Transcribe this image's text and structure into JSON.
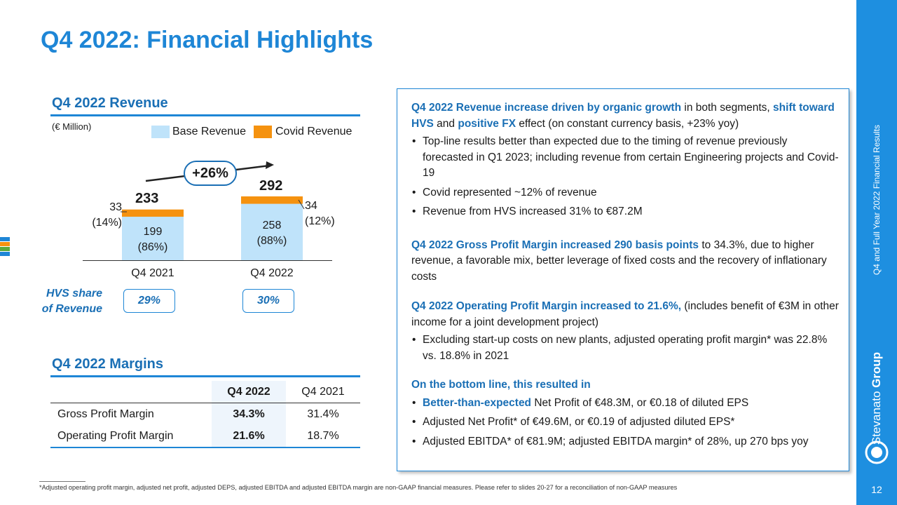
{
  "page": {
    "title": "Q4 2022: Financial Highlights",
    "side_label": "Q4 and Full Year 2022 Financial Results",
    "brand_name_part1": "Stevanato",
    "brand_name_part2": "Group",
    "page_number": "12",
    "colors": {
      "accent": "#1e86d6",
      "heading": "#1a6fb5",
      "base_revenue": "#bfe3fa",
      "covid_revenue": "#f5920f"
    }
  },
  "revenue": {
    "heading": "Q4 2022 Revenue",
    "unit": "(€ Million)",
    "legend_base": "Base Revenue",
    "legend_covid": "Covid Revenue",
    "growth": "+26%",
    "hvs_label_line1": "HVS share",
    "hvs_label_line2": "of Revenue",
    "periods": [
      {
        "label": "Q4 2021",
        "total": "233",
        "base": "199",
        "base_pct": "(86%)",
        "covid": "33",
        "covid_pct": "(14%)",
        "hvs_share": "29%"
      },
      {
        "label": "Q4 2022",
        "total": "292",
        "base": "258",
        "base_pct": "(88%)",
        "covid": "34",
        "covid_pct": "(12%)",
        "hvs_share": "30%"
      }
    ]
  },
  "chart_data": {
    "type": "bar",
    "title": "Q4 2022 Revenue",
    "ylabel": "(€ Million)",
    "categories": [
      "Q4 2021",
      "Q4 2022"
    ],
    "series": [
      {
        "name": "Base Revenue",
        "values": [
          199,
          258
        ]
      },
      {
        "name": "Covid Revenue",
        "values": [
          33,
          34
        ]
      }
    ],
    "totals": [
      233,
      292
    ],
    "ylim": [
      0,
      292
    ],
    "stacked": true
  },
  "margins": {
    "heading": "Q4 2022 Margins",
    "columns": [
      "Q4 2022",
      "Q4 2021"
    ],
    "rows": [
      {
        "label": "Gross Profit Margin",
        "q4_2022": "34.3%",
        "q4_2021": "31.4%"
      },
      {
        "label": "Operating Profit Margin",
        "q4_2022": "21.6%",
        "q4_2021": "18.7%"
      }
    ]
  },
  "highlights": {
    "p1_a": "Q4 2022 Revenue increase driven by organic growth",
    "p1_b": " in both segments, ",
    "p1_c": "shift toward HVS",
    "p1_d": " and ",
    "p1_e": "positive FX",
    "p1_f": " effect (on constant currency basis, +23% yoy)",
    "b1": "Top-line results better than expected due to the timing of revenue previously forecasted in Q1 2023; including revenue from certain Engineering projects and Covid-19",
    "b2": "Covid represented ~12% of revenue",
    "b3": "Revenue from HVS increased 31% to  €87.2M",
    "p2_a": "Q4 2022 Gross Profit Margin increased 290 basis points",
    "p2_b": " to 34.3%, due to higher revenue, a favorable mix, better leverage of fixed costs and the recovery of inflationary costs",
    "p3_a": "Q4 2022 Operating Profit Margin increased to 21.6%,",
    "p3_b": " (includes benefit of €3M in other income for a joint development project)",
    "b4": "Excluding start-up costs on new plants, adjusted operating profit margin* was 22.8% vs. 18.8% in 2021",
    "p4": "On the bottom line, this resulted in",
    "b5_a": "Better-than-expected",
    "b5_b": " Net Profit of €48.3M, or €0.18 of diluted EPS",
    "b6": "Adjusted Net Profit* of €49.6M, or €0.19 of adjusted diluted EPS*",
    "b7": "Adjusted EBITDA* of €81.9M; adjusted EBITDA margin* of 28%, up 270 bps yoy"
  },
  "footnote": "*Adjusted operating profit margin, adjusted net profit, adjusted DEPS, adjusted EBITDA and adjusted EBITDA margin are non-GAAP financial measures. Please refer to slides 20-27 for a reconciliation of non-GAAP measures"
}
